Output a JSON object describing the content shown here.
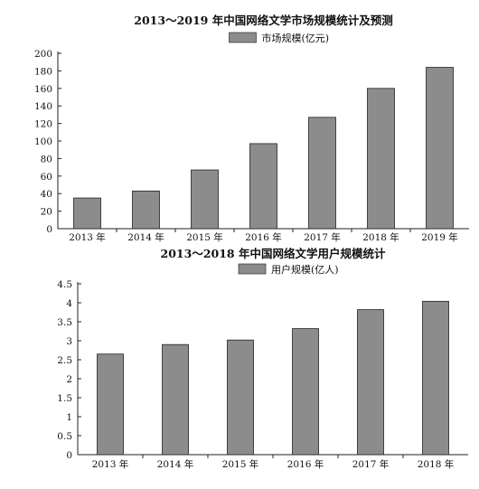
{
  "chart_data": [
    {
      "type": "bar",
      "title": "2013～2019 年中国网络文学市场规模统计及预测",
      "categories": [
        "2013 年",
        "2014 年",
        "2015 年",
        "2016 年",
        "2017 年",
        "2018 年",
        "2019 年"
      ],
      "series": [
        {
          "name": "市场规模(亿元)",
          "values": [
            35,
            43,
            67,
            97,
            127,
            160,
            184
          ]
        }
      ],
      "xlabel": "",
      "ylabel": "",
      "ylim": [
        0,
        200
      ],
      "yticks": [
        "0",
        "20",
        "40",
        "60",
        "80",
        "100",
        "120",
        "140",
        "160",
        "180",
        "200"
      ],
      "legend": "top-center",
      "grid": false,
      "bar_color": "#8c8c8c"
    },
    {
      "type": "bar",
      "title": "2013～2018 年中国网络文学用户规模统计",
      "categories": [
        "2013 年",
        "2014 年",
        "2015 年",
        "2016 年",
        "2017 年",
        "2018 年"
      ],
      "series": [
        {
          "name": "用户规模(亿人)",
          "values": [
            2.65,
            2.9,
            3.02,
            3.32,
            3.82,
            4.04
          ]
        }
      ],
      "xlabel": "",
      "ylabel": "",
      "ylim": [
        0,
        4.5
      ],
      "yticks": [
        "0",
        "0.5",
        "1",
        "1.5",
        "2",
        "2.5",
        "3",
        "3.5",
        "4",
        "4.5"
      ],
      "legend": "top-center",
      "grid": false,
      "bar_color": "#8c8c8c"
    }
  ]
}
